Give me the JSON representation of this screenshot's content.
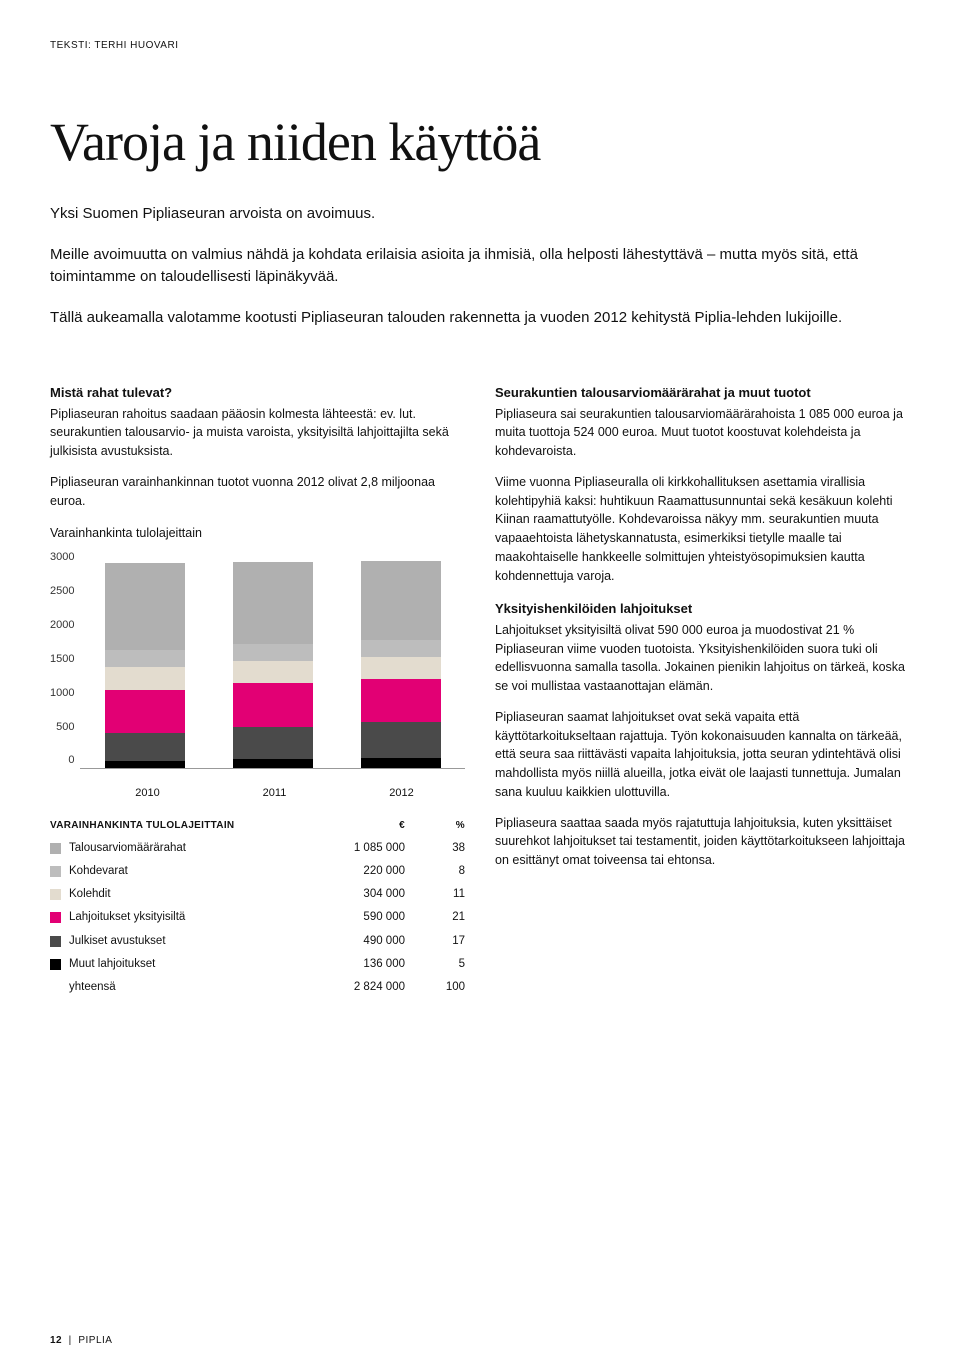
{
  "byline": "TEKSTI: TERHI HUOVARI",
  "title": "Varoja ja niiden käyttöä",
  "lead1": "Yksi Suomen Pipliaseuran arvoista on avoimuus.",
  "lead2": "Meille avoimuutta on valmius nähdä ja kohdata erilaisia asioita ja ihmisiä, olla helposti lähestyttävä – mutta myös sitä, että toimintamme on taloudellisesti läpinäkyvää.",
  "lead3": "Tällä aukeamalla valotamme kootusti Pipliaseuran talouden rakennetta ja vuoden 2012 kehitystä Piplia-lehden lukijoille.",
  "left": {
    "h1": "Mistä rahat tulevat?",
    "p1": "Pipliaseuran rahoitus saadaan pääosin kolmesta lähteestä: ev. lut. seurakuntien talousarvio- ja muista varoista, yksityisiltä lahjoittajilta sekä julkisista avustuksista.",
    "p2": "Pipliaseuran varainhankinnan tuotot vuonna 2012 olivat 2,8 miljoonaa euroa.",
    "chartTitle": "Varainhankinta tulolajeittain"
  },
  "right": {
    "h1": "Seurakuntien talousarviomäärärahat ja muut tuotot",
    "p1": "Pipliaseura sai seurakuntien talousarviomäärärahoista 1 085 000 euroa ja muita tuottoja 524 000 euroa. Muut tuotot koostuvat kolehdeista ja kohdevaroista.",
    "p2": "Viime vuonna Pipliaseuralla oli kirkkohallituksen asettamia virallisia kolehtipyhiä kaksi: huhtikuun Raamattusunnuntai sekä kesäkuun kolehti Kiinan raamattutyölle. Kohdevaroissa näkyy mm. seurakuntien muuta vapaaehtoista lähetyskannatusta, esimerkiksi tietylle maalle tai maakohtaiselle hankkeelle solmittujen yhteistyösopimuksien kautta kohdennettuja varoja.",
    "h2": "Yksityishenkilöiden lahjoitukset",
    "p3": "Lahjoitukset yksityisiltä olivat 590 000 euroa ja muodostivat 21 % Pipliaseuran viime vuoden tuotoista. Yksityishenkilöiden suora tuki oli edellisvuonna samalla tasolla. Jokainen pienikin lahjoitus on tärkeä, koska se voi mullistaa vastaanottajan elämän.",
    "p4": "Pipliaseuran saamat lahjoitukset ovat sekä vapaita että käyttötarkoitukseltaan rajattuja. Työn kokonaisuuden kannalta on tärkeää, että seura saa riittävästi vapaita lahjoituksia, jotta seuran ydintehtävä olisi mahdollista myös niillä alueilla, jotka eivät ole laajasti tunnettuja. Jumalan sana kuuluu kaikkien ulottuvilla.",
    "p5": "Pipliaseura saattaa saada myös rajatuttuja lahjoituksia, kuten yksittäiset suurehkot lahjoitukset tai testamentit, joiden käyttötarkoitukseen lahjoittaja on esittänyt omat toiveensa tai ehtonsa."
  },
  "chart": {
    "type": "stacked-bar",
    "ymax": 3000,
    "yticks": [
      "3000",
      "2500",
      "2000",
      "1500",
      "1000",
      "500",
      "0"
    ],
    "categories": [
      "2010",
      "2011",
      "2012"
    ],
    "series_colors": {
      "talousarvio": "#b0b0b0",
      "kohdevarat": "#bdbdbd",
      "kolehdit": "#e3dccf",
      "yksityis": "#e20074",
      "julkiset": "#4a4a4a",
      "muut": "#000000"
    },
    "bars": [
      {
        "year": "2010",
        "values": {
          "talousarvio": 1180,
          "kohdevarat": 230,
          "kolehdit": 310,
          "yksityis": 590,
          "julkiset": 380,
          "muut": 100
        }
      },
      {
        "year": "2011",
        "values": {
          "talousarvio": 1130,
          "kohdevarat": 225,
          "kolehdit": 305,
          "yksityis": 595,
          "julkiset": 440,
          "muut": 120
        }
      },
      {
        "year": "2012",
        "values": {
          "talousarvio": 1085,
          "kohdevarat": 220,
          "kolehdit": 304,
          "yksityis": 590,
          "julkiset": 490,
          "muut": 136
        }
      }
    ],
    "background_color": "#ffffff"
  },
  "table": {
    "header_label": "varainhankinta tulolajeittain",
    "header_eur": "€",
    "header_pct": "%",
    "rows": [
      {
        "swatch": "#b0b0b0",
        "label": "Talousarviomäärärahat",
        "eur": "1 085 000",
        "pct": "38"
      },
      {
        "swatch": "#bdbdbd",
        "label": "Kohdevarat",
        "eur": "220 000",
        "pct": "8"
      },
      {
        "swatch": "#e3dccf",
        "label": "Kolehdit",
        "eur": "304 000",
        "pct": "11"
      },
      {
        "swatch": "#e20074",
        "label": "Lahjoitukset yksityisiltä",
        "eur": "590 000",
        "pct": "21"
      },
      {
        "swatch": "#4a4a4a",
        "label": "Julkiset avustukset",
        "eur": "490 000",
        "pct": "17"
      },
      {
        "swatch": "#000000",
        "label": "Muut lahjoitukset",
        "eur": "136 000",
        "pct": "5"
      }
    ],
    "total": {
      "label": "yhteensä",
      "eur": "2 824 000",
      "pct": "100"
    }
  },
  "footer": {
    "pagenum": "12",
    "brand": "PIPLIA"
  }
}
